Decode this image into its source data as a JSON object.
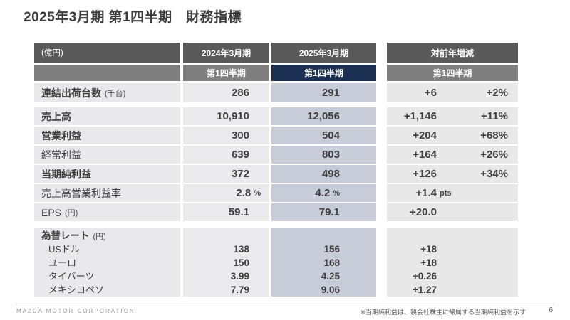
{
  "slide": {
    "title": "2025年3月期 第1四半期　財務指標",
    "footer": {
      "company": "MAZDA MOTOR CORPORATION",
      "note": "※当期純利益は、親会社株主に帰属する当期純利益を示す",
      "page": "6"
    }
  },
  "table": {
    "unit_label": "(億円)",
    "headers": {
      "fy2024": "2024年3月期",
      "fy2025": "2025年3月期",
      "q2024": "第1四半期",
      "q2025": "第1四半期"
    },
    "yoy": {
      "title": "対前年増減",
      "q": "第1四半期"
    },
    "rows": [
      {
        "label": "連結出荷台数",
        "unit": "(千台)",
        "v2024": "286",
        "v2025": "291",
        "diff": "+6",
        "pct": "+2%"
      },
      {
        "label": "売上高",
        "v2024": "10,910",
        "v2025": "12,056",
        "diff": "+1,146",
        "pct": "+11%"
      },
      {
        "label": "営業利益",
        "v2024": "300",
        "v2025": "504",
        "diff": "+204",
        "pct": "+68%"
      },
      {
        "label": "経常利益",
        "v2024": "639",
        "v2025": "803",
        "diff": "+164",
        "pct": "+26%"
      },
      {
        "label": "当期純利益",
        "v2024": "372",
        "v2025": "498",
        "diff": "+126",
        "pct": "+34%"
      },
      {
        "label": "売上高営業利益率",
        "v2024": "2.8",
        "v2024_suffix": "%",
        "v2025": "4.2",
        "v2025_suffix": "%",
        "diff": "+1.4",
        "diff_suffix": "pts"
      },
      {
        "label": "EPS",
        "unit": "(円)",
        "v2024": "59.1",
        "v2025": "79.1",
        "diff": "+20.0"
      }
    ],
    "fx": {
      "label": "為替レート",
      "unit": "(円)",
      "rows": [
        {
          "label": "USドル",
          "v2024": "138",
          "v2025": "156",
          "diff": "+18"
        },
        {
          "label": "ユーロ",
          "v2024": "150",
          "v2025": "168",
          "diff": "+18"
        },
        {
          "label": "タイバーツ",
          "v2024": "3.99",
          "v2025": "4.25",
          "diff": "+0.26"
        },
        {
          "label": "メキシコペソ",
          "v2024": "7.79",
          "v2025": "9.06",
          "diff": "+1.27"
        }
      ]
    }
  },
  "colors": {
    "header_dark": "#595959",
    "header_mid": "#7f7f7f",
    "accent_navy": "#1a2f52",
    "cell_gray": "#e9e9eb",
    "cell_blue": "#c8ccd8",
    "cell_right_gray": "#e8e8e8",
    "text_dark": "#3f3f3f"
  }
}
